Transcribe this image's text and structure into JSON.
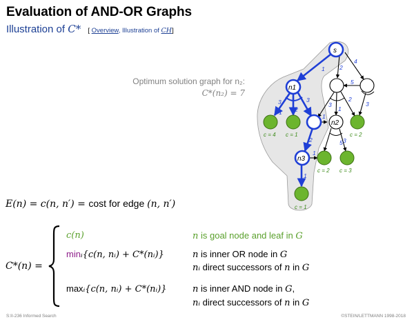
{
  "header": {
    "title": "Evaluation of AND-OR Graphs",
    "subtitle_prefix": "Illustration of ",
    "subtitle_math": "C*",
    "crumb_open": "[ ",
    "crumb_link": "Overview",
    "crumb_sep": ", Illustration of ",
    "crumb_math": "CH",
    "crumb_close": "]"
  },
  "graph_caption": {
    "line1": "Optimum solution graph for n₂:",
    "line2": "C*(n₂) = 7"
  },
  "graph": {
    "node_labels": {
      "s": "s",
      "n1": "n1",
      "n2": "n2",
      "n3": "n3"
    },
    "edge_labels": [
      "1",
      "2",
      "4",
      "5",
      "2",
      "3",
      "3",
      "1",
      "3",
      "2",
      "3",
      "1",
      "2",
      "5",
      "3",
      "1",
      "1",
      "1"
    ],
    "leaf_costs": [
      "c = 4",
      "c = 1",
      "c = 2",
      "c = 2",
      "c = 3",
      "c = 1"
    ]
  },
  "formulas": {
    "edge_cost_lhs": "E(n) = c(n, n′) = ",
    "edge_cost_text": "cost for edge ",
    "edge_cost_rhs": "(n, n′)",
    "cstar_lhs": "C*(n) =",
    "case1_expr": "c(n)",
    "case1_cond_a": "n",
    "case1_cond_b": " is goal node and leaf in ",
    "case1_cond_c": "G",
    "case2_fn": "min",
    "case2_expr": "ᵢ{c(n, nᵢ) + C*(nᵢ)}",
    "case2_cond1_a": "n",
    "case2_cond1_b": " is inner OR node in ",
    "case2_cond1_c": "G",
    "case2_cond2_a": "nᵢ",
    "case2_cond2_b": " direct successors of ",
    "case2_cond2_c": "n",
    "case2_cond2_d": " in ",
    "case2_cond2_e": "G",
    "case3_fn": "max",
    "case3_expr": "ᵢ{c(n, nᵢ) + C*(nᵢ)}",
    "case3_cond1_a": "n",
    "case3_cond1_b": " is inner AND node in ",
    "case3_cond1_c": "G",
    "case3_cond1_d": ",",
    "case3_cond2_a": "nᵢ",
    "case3_cond2_b": " direct successors of ",
    "case3_cond2_c": "n",
    "case3_cond2_d": " in ",
    "case3_cond2_e": "G"
  },
  "footer": {
    "left": "S:II-236   Informed Search",
    "right": "©STEIN/LETTMANN 1998-2018"
  },
  "colors": {
    "accent_blue": "#1c3f94",
    "path_blue": "#1f3fd6",
    "goal_green": "#6cb52e",
    "or_purple": "#8e1d8a",
    "region_gray": "#e6e6e6"
  }
}
